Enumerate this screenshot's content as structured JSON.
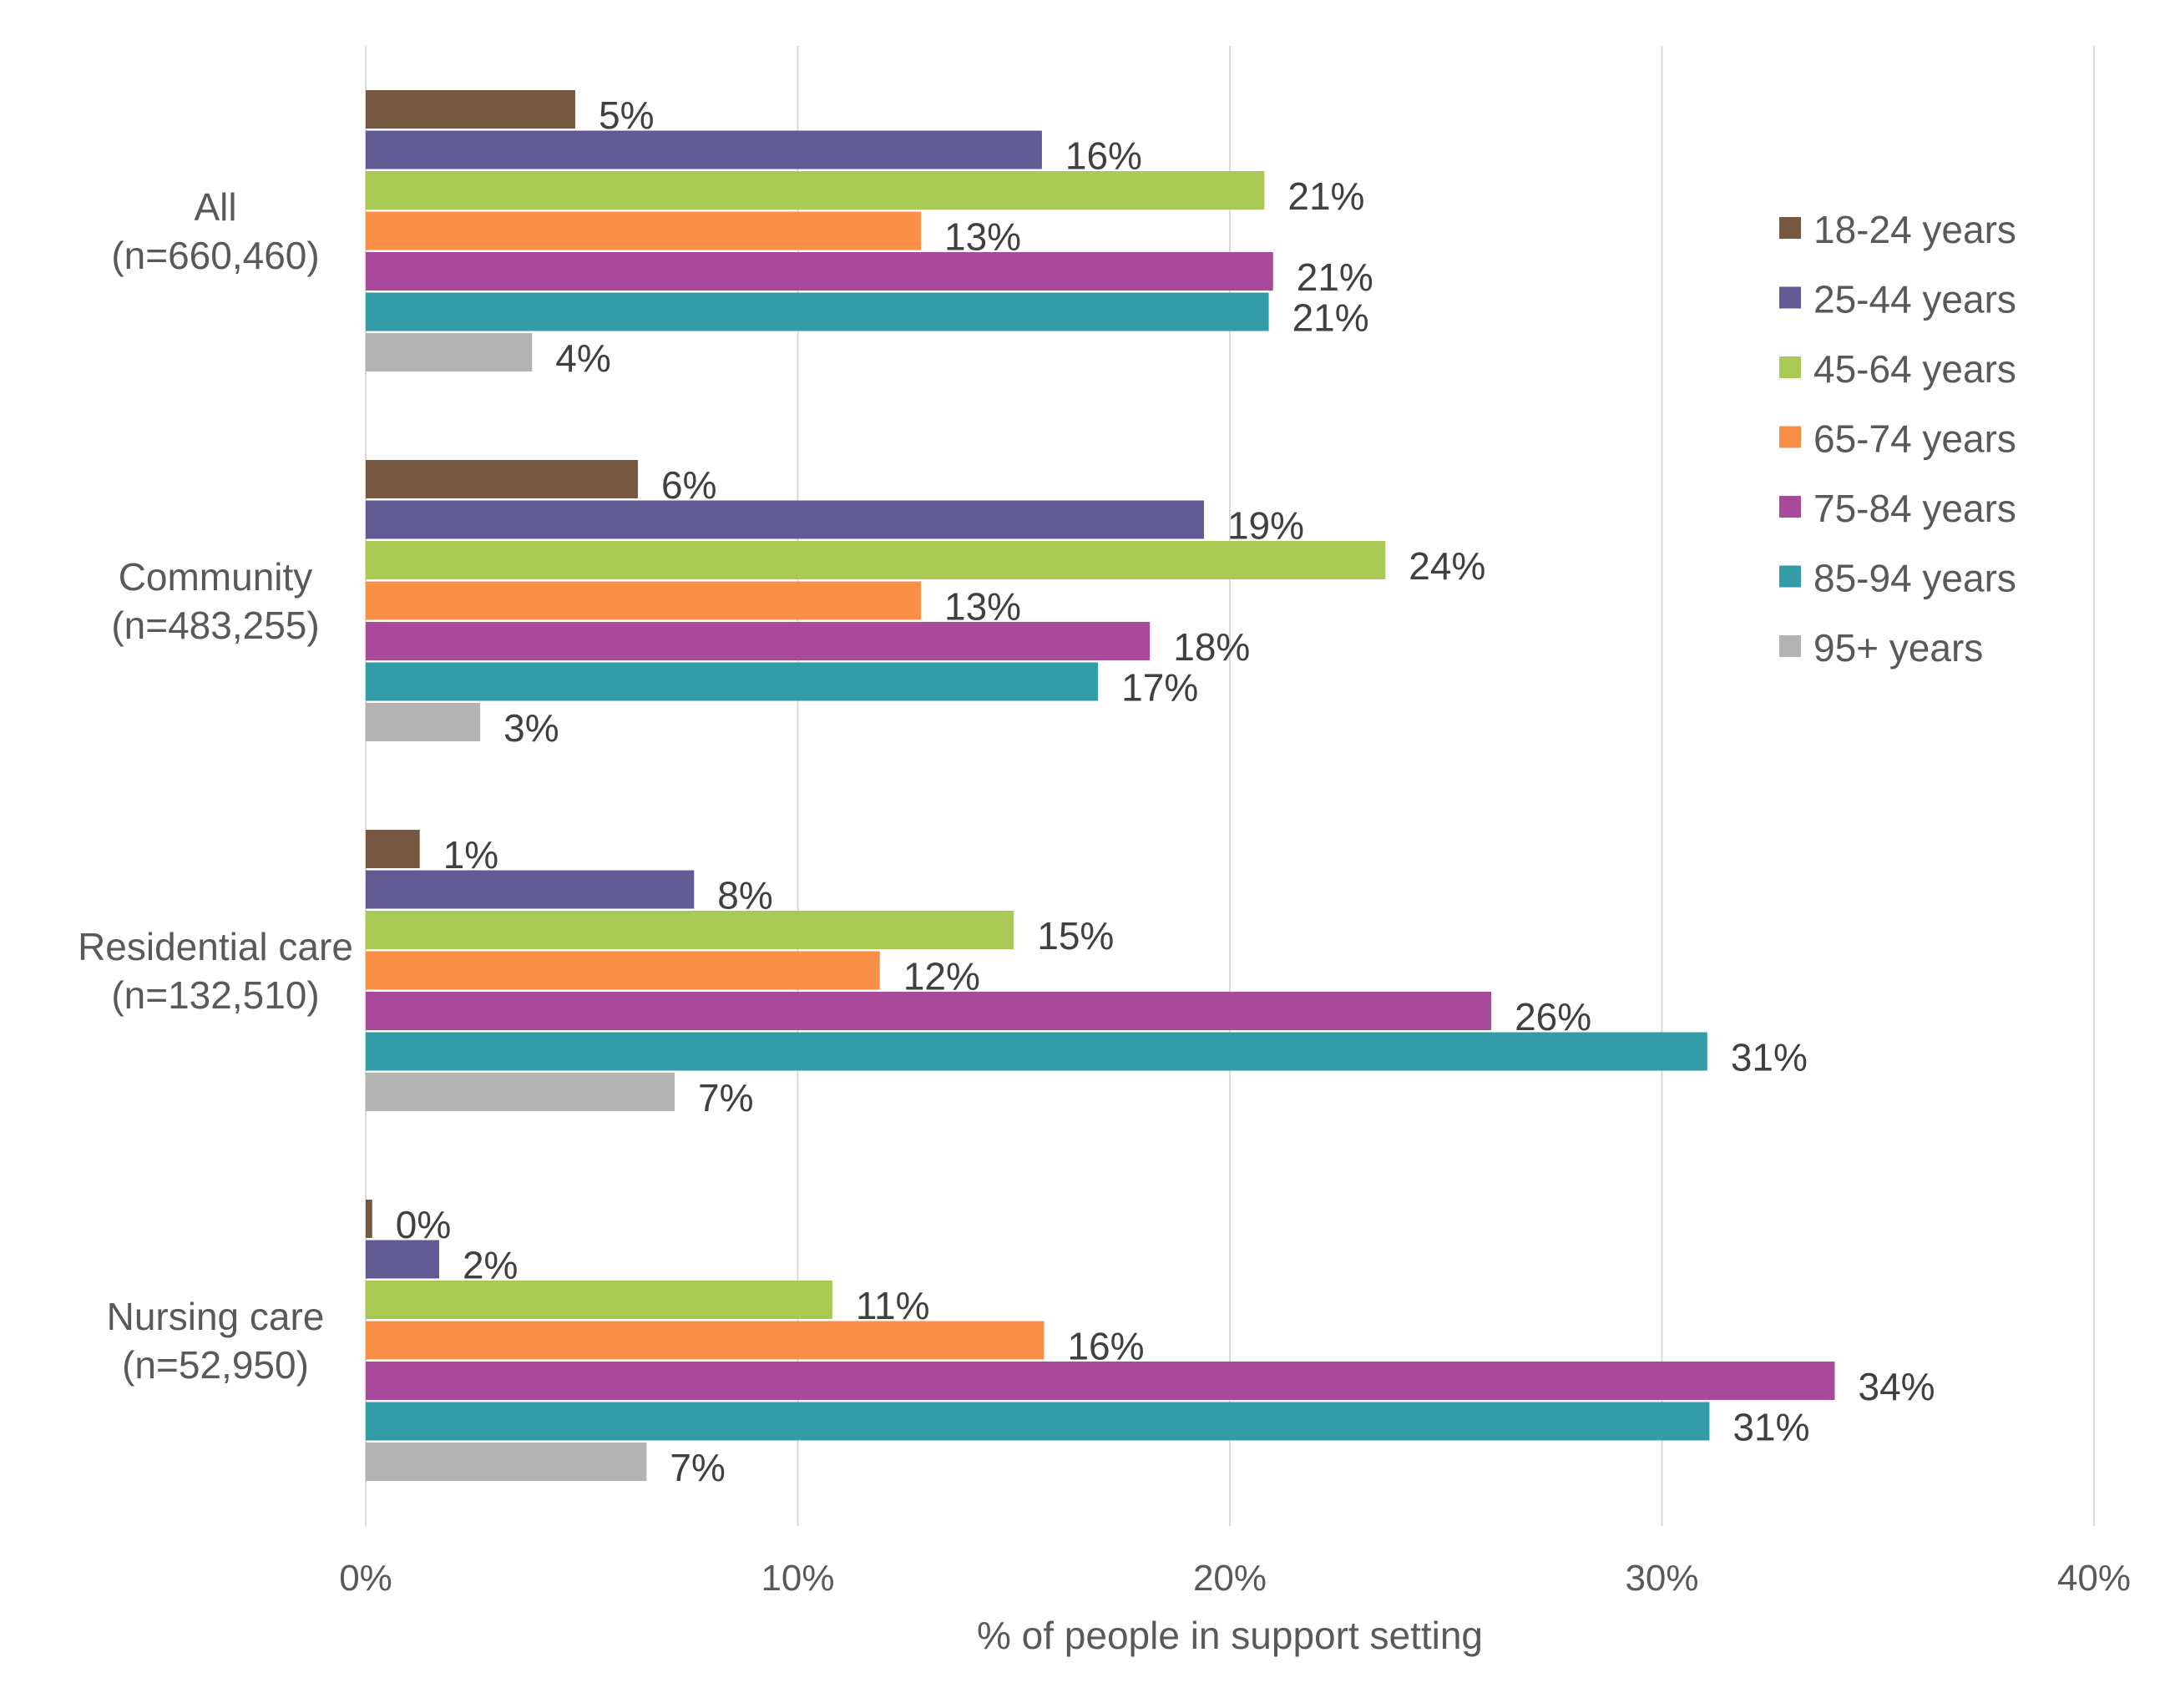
{
  "chart_data": {
    "type": "bar",
    "orientation": "horizontal",
    "categories": [
      [
        "All",
        "(n=660,460)"
      ],
      [
        "Community",
        "(n=483,255)"
      ],
      [
        "Residential care",
        "(n=132,510)"
      ],
      [
        "Nursing care",
        "(n=52,950)"
      ]
    ],
    "series": [
      {
        "name": "18-24 years",
        "color": "#765840",
        "values": [
          4.85,
          6.3,
          1.25,
          0.15
        ],
        "labels": [
          "5%",
          "6%",
          "1%",
          "0%"
        ]
      },
      {
        "name": "25-44 years",
        "color": "#625A93",
        "values": [
          15.65,
          19.4,
          7.6,
          1.7
        ],
        "labels": [
          "16%",
          "19%",
          "8%",
          "2%"
        ]
      },
      {
        "name": "45-64 years",
        "color": "#A8CA55",
        "values": [
          20.8,
          23.6,
          15.0,
          10.8
        ],
        "labels": [
          "21%",
          "24%",
          "15%",
          "11%"
        ]
      },
      {
        "name": "65-74 years",
        "color": "#FA8F48",
        "values": [
          12.85,
          12.85,
          11.9,
          15.7
        ],
        "labels": [
          "13%",
          "13%",
          "12%",
          "16%"
        ]
      },
      {
        "name": "75-84 years",
        "color": "#A84A99",
        "values": [
          21.0,
          18.15,
          26.05,
          34.0
        ],
        "labels": [
          "21%",
          "18%",
          "26%",
          "34%"
        ]
      },
      {
        "name": "85-94 years",
        "color": "#339CA6",
        "values": [
          20.9,
          16.95,
          31.05,
          31.1
        ],
        "labels": [
          "21%",
          "17%",
          "31%",
          "31%"
        ]
      },
      {
        "name": "95+ years",
        "color": "#B3B3B3",
        "values": [
          3.85,
          2.65,
          7.15,
          6.5
        ],
        "labels": [
          "4%",
          "3%",
          "7%",
          "7%"
        ]
      }
    ],
    "xlim": [
      0,
      40
    ],
    "xticks": [
      0,
      10,
      20,
      30,
      40
    ],
    "xtick_labels": [
      "0%",
      "10%",
      "20%",
      "30%",
      "40%"
    ],
    "xlabel": "% of people in support setting",
    "ylabel": "",
    "title": "",
    "grid": true,
    "legend_position": "right"
  }
}
